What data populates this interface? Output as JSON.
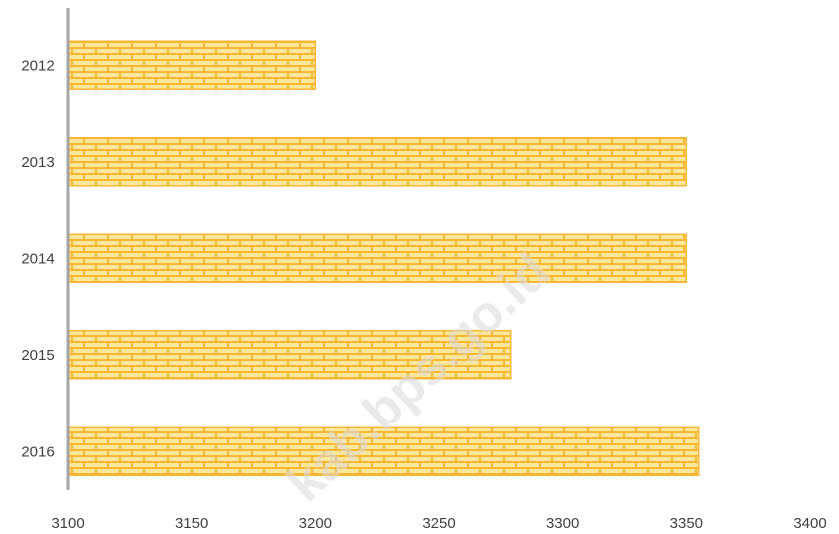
{
  "chart_data": {
    "type": "bar",
    "orientation": "horizontal",
    "categories": [
      "2012",
      "2013",
      "2014",
      "2015",
      "2016"
    ],
    "values": [
      3200,
      3350,
      3350,
      3279,
      3355
    ],
    "xlim": [
      3100,
      3400
    ],
    "x_ticks": [
      "3100",
      "3150",
      "3200",
      "3250",
      "3300",
      "3350",
      "3400"
    ],
    "bar_color": "#f7b733",
    "bar_pattern": "brick",
    "bar_pattern_color": "#fde79a",
    "axis_color": "#a6a6a6",
    "grid": false,
    "legend": "none"
  },
  "watermark": "kab.bps.go.id"
}
